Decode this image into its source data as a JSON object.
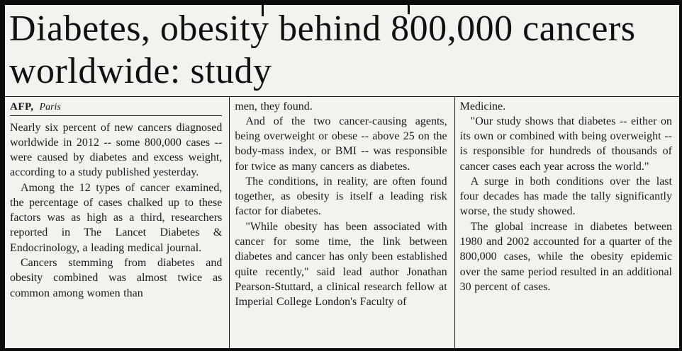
{
  "article": {
    "headline": "Diabetes, obesity behind 800,000 cancers worldwide: study",
    "byline": {
      "agency": "AFP,",
      "location": "Paris"
    },
    "columns": [
      {
        "paragraphs": [
          "Nearly six percent of new cancers diagnosed worldwide in 2012 -- some 800,000 cases -- were caused by diabetes and excess weight, according to a study published yesterday.",
          "Among the 12 types of cancer examined, the percentage of cases chalked up to these factors was as high as a third, researchers reported in The Lancet Diabetes & Endocrinology, a leading medical journal.",
          "Cancers stemming from diabetes and obesity combined was almost twice as common among women than"
        ]
      },
      {
        "paragraphs": [
          "men, they found.",
          "And of the two cancer-causing agents, being overweight or obese -- above 25 on the body-mass index, or BMI -- was responsible for twice as many cancers as diabetes.",
          "The conditions, in reality, are often found together, as obesity is itself a leading risk factor for diabetes.",
          "\"While obesity has been associated with cancer for some time, the link between diabetes and cancer has only been established quite recently,\" said lead author Jonathan Pearson-Stuttard, a clinical research fellow at Imperial College London's Faculty of"
        ]
      },
      {
        "paragraphs": [
          "Medicine.",
          "\"Our study shows that diabetes -- either on its own or combined with being overweight -- is responsible for hundreds of thousands of cancer cases each year across the world.\"",
          "A surge in both conditions over the last four decades has made the tally significantly worse, the study showed.",
          "The global increase in diabetes between 1980 and 2002 accounted for a quarter of the 800,000 cases, while the obesity epidemic over the same period resulted in an additional 30 percent of cases."
        ]
      }
    ]
  }
}
